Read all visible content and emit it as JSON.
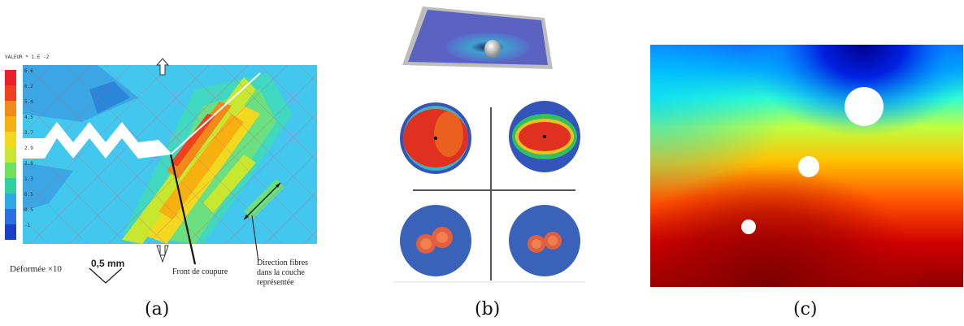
{
  "figure": {
    "panels": [
      {
        "id": "a",
        "caption": "(a)"
      },
      {
        "id": "b",
        "caption": "(b)"
      },
      {
        "id": "c",
        "caption": "(c)"
      }
    ]
  },
  "panel_a": {
    "header": "VALEUR * 1.E -2",
    "legend_values": [
      "6.6",
      "6.2",
      "5.4",
      "4.5",
      "3.7",
      "2.9",
      "2.0",
      "1.3",
      "0.5",
      "0.5",
      "-1"
    ],
    "legend_colors": [
      "#e8202a",
      "#f04020",
      "#f38a18",
      "#f6b010",
      "#f3d820",
      "#c8e830",
      "#70e060",
      "#30d0a0",
      "#30a8e8",
      "#2a70e0",
      "#1a40c8"
    ],
    "deformee_label": "Déformée ×10",
    "scale_label": "0,5 mm",
    "front_label": "Front de coupure",
    "direction_label_lines": [
      "Direction fibres",
      "dans la couche",
      "représentée"
    ]
  },
  "colors": {
    "jet_dark_blue": "#00008f",
    "jet_blue": "#0060ff",
    "jet_cyan": "#00e0ff",
    "jet_yellow": "#ffe000",
    "jet_orange": "#ff7000",
    "jet_red": "#d00000",
    "jet_dark_red": "#8f0000"
  }
}
